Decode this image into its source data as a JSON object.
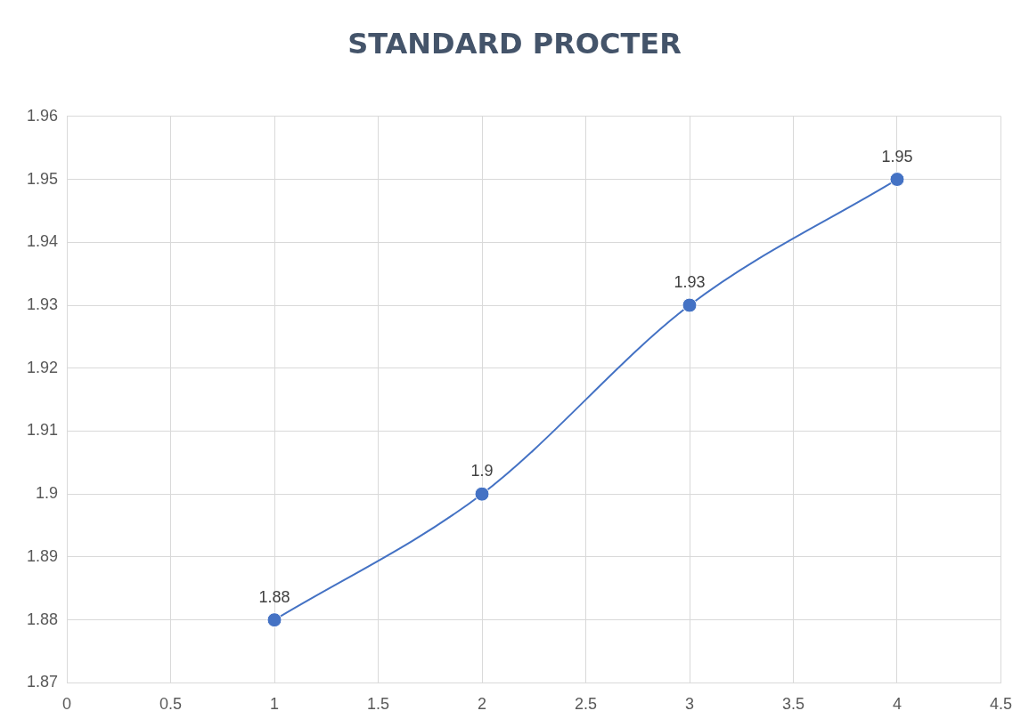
{
  "chart_data": {
    "type": "line",
    "title": "STANDARD PROCTER",
    "x": [
      1,
      2,
      3,
      4
    ],
    "series": [
      {
        "color": "#4472c4",
        "values": [
          1.88,
          1.9,
          1.93,
          1.95
        ]
      }
    ],
    "xlim": [
      0,
      4.5
    ],
    "xticks": [
      0,
      0.5,
      1,
      1.5,
      2,
      2.5,
      3,
      3.5,
      4,
      4.5
    ],
    "ylim": [
      1.87,
      1.96
    ],
    "yticks": [
      1.87,
      1.88,
      1.89,
      1.9,
      1.91,
      1.92,
      1.93,
      1.94,
      1.95,
      1.96
    ],
    "grid": true,
    "marker": "circle",
    "line_style": "solid",
    "data_labels": true,
    "legend": false
  }
}
